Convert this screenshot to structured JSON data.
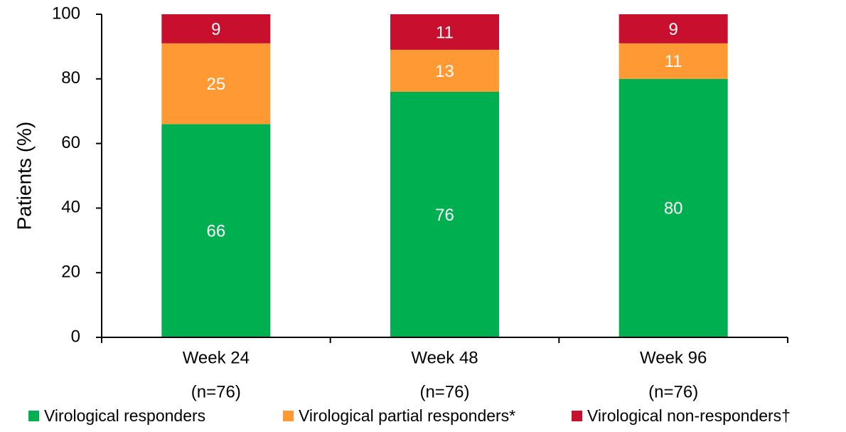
{
  "chart_data": {
    "type": "stacked_bar",
    "y_label": "Patients (%)",
    "categories": [
      "Week 24",
      "Week 48",
      "Week 96"
    ],
    "category_sublabels": [
      "(n=76)",
      "(n=76)",
      "(n=76)"
    ],
    "series": [
      {
        "name": "Virological responders",
        "color": "#00b050",
        "values": [
          66,
          76,
          80
        ]
      },
      {
        "name": "Virological partial responders*",
        "color": "#ff9933",
        "values": [
          25,
          13,
          11
        ]
      },
      {
        "name": "Virological non-responders†",
        "color": "#c8102e",
        "values": [
          9,
          11,
          9
        ]
      }
    ],
    "ylim": [
      0,
      100
    ],
    "yticks": [
      0,
      20,
      40,
      60,
      80,
      100
    ],
    "grid": false
  }
}
